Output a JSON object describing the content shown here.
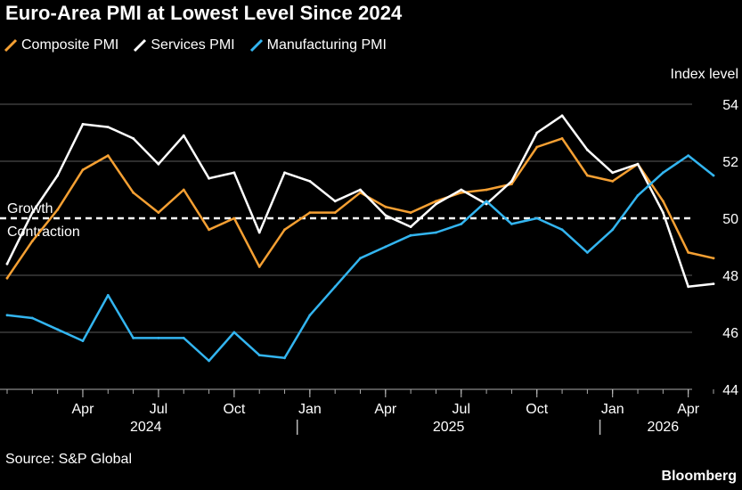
{
  "title": "Euro-Area PMI at Lowest Level Since 2024",
  "source": "Source: S&P Global",
  "brand": "Bloomberg",
  "chart_data": {
    "type": "line",
    "title": "Euro-Area PMI at Lowest Level Since 2024",
    "ylabel": "Index level",
    "ylim": [
      43.5,
      55
    ],
    "yticks": [
      44,
      46,
      48,
      50,
      52,
      54
    ],
    "x": [
      "2024-01",
      "2024-02",
      "2024-03",
      "2024-04",
      "2024-05",
      "2024-06",
      "2024-07",
      "2024-08",
      "2024-09",
      "2024-10",
      "2024-11",
      "2024-12",
      "2025-01",
      "2025-02",
      "2025-03",
      "2025-04",
      "2025-05",
      "2025-06",
      "2025-07",
      "2025-08",
      "2025-09",
      "2025-10",
      "2025-11",
      "2025-12",
      "2026-01",
      "2026-02",
      "2026-03",
      "2026-04",
      "2026-05"
    ],
    "x_ticks": [
      {
        "index": 3,
        "label": "Apr"
      },
      {
        "index": 6,
        "label": "Jul"
      },
      {
        "index": 9,
        "label": "Oct"
      },
      {
        "index": 12,
        "label": "Jan"
      },
      {
        "index": 15,
        "label": "Apr"
      },
      {
        "index": 18,
        "label": "Jul"
      },
      {
        "index": 21,
        "label": "Oct"
      },
      {
        "index": 24,
        "label": "Jan"
      },
      {
        "index": 27,
        "label": "Apr"
      }
    ],
    "year_labels": [
      {
        "label": "2024",
        "center_index": 5.5
      },
      {
        "label": "2025",
        "center_index": 17.5
      },
      {
        "label": "2026",
        "center_index": 26
      }
    ],
    "year_separators": [
      11.5,
      23.5
    ],
    "reference_line": {
      "y": 50,
      "label_above": "Growth",
      "label_below": "Contraction"
    },
    "series": [
      {
        "name": "Composite PMI",
        "color": "#f5a033",
        "values": [
          47.9,
          49.2,
          50.3,
          51.7,
          52.2,
          50.9,
          50.2,
          51.0,
          49.6,
          50.0,
          48.3,
          49.6,
          50.2,
          50.2,
          50.9,
          50.4,
          50.2,
          50.6,
          50.9,
          51.0,
          51.2,
          52.5,
          52.8,
          51.5,
          51.3,
          51.9,
          50.6,
          48.8,
          48.6
        ]
      },
      {
        "name": "Services PMI",
        "color": "#ffffff",
        "values": [
          48.4,
          50.2,
          51.5,
          53.3,
          53.2,
          52.8,
          51.9,
          52.9,
          51.4,
          51.6,
          49.5,
          51.6,
          51.3,
          50.6,
          51.0,
          50.1,
          49.7,
          50.5,
          51.0,
          50.5,
          51.3,
          53.0,
          53.6,
          52.4,
          51.6,
          51.9,
          50.2,
          47.6,
          47.7
        ]
      },
      {
        "name": "Manufacturing PMI",
        "color": "#33b5f0",
        "values": [
          46.6,
          46.5,
          46.1,
          45.7,
          47.3,
          45.8,
          45.8,
          45.8,
          45.0,
          46.0,
          45.2,
          45.1,
          46.6,
          47.6,
          48.6,
          49.0,
          49.4,
          49.5,
          49.8,
          50.6,
          49.8,
          50.0,
          49.6,
          48.8,
          49.6,
          50.8,
          51.6,
          52.2,
          51.5
        ]
      }
    ]
  }
}
